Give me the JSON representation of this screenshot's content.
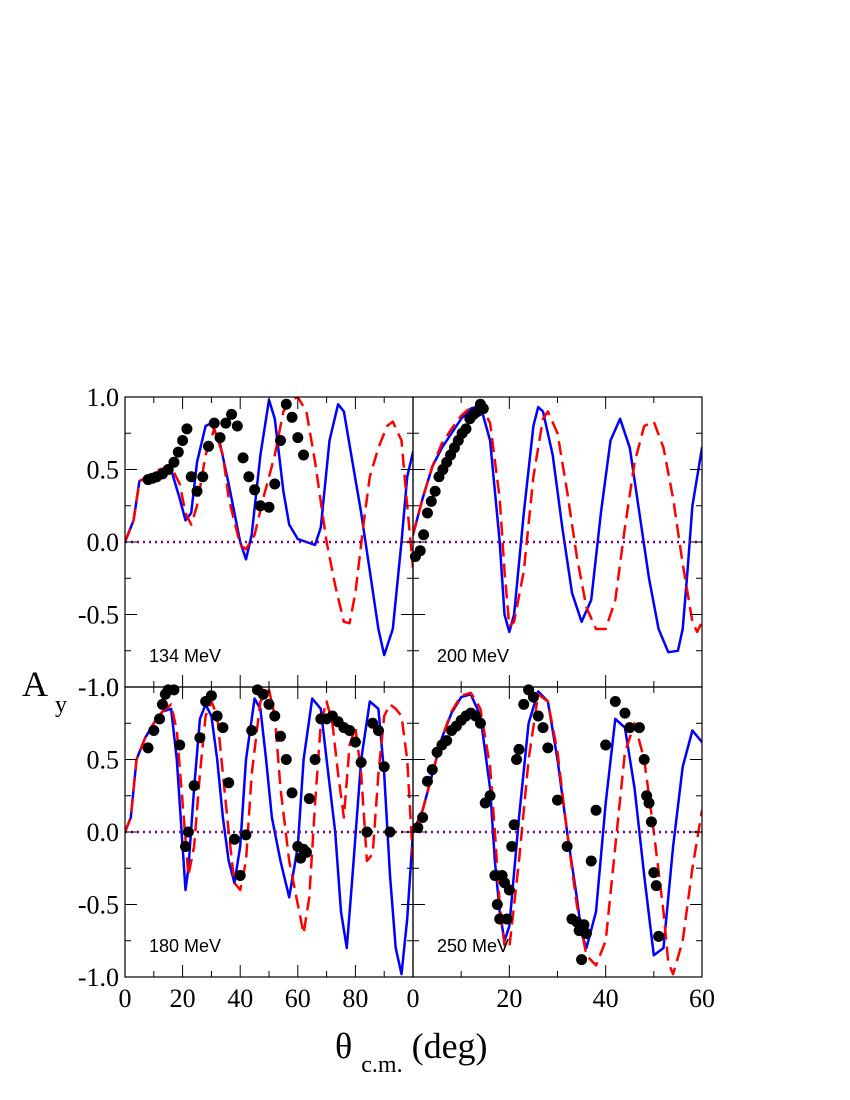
{
  "figure": {
    "ylabel_main": "A",
    "ylabel_sub": "y",
    "xlabel_main": "θ",
    "xlabel_sub": "c.m.",
    "xlabel_unit": "(deg)"
  },
  "chart_data": [
    {
      "type": "line",
      "panel": "top-left",
      "label": "134 MeV",
      "xlim": [
        0,
        100
      ],
      "ylim": [
        -1.0,
        1.0
      ],
      "yticks": [
        "-1.0",
        "-0.5",
        "0.0",
        "0.5",
        "1.0"
      ],
      "xticks": [],
      "series": [
        {
          "style": "solid",
          "color": "#0000ff",
          "x": [
            0,
            3,
            5,
            8,
            12,
            16,
            19,
            21,
            23,
            25,
            28,
            30,
            33,
            36,
            40,
            42,
            44,
            47,
            50,
            52,
            55,
            57,
            60,
            63,
            66,
            68,
            71,
            74,
            76,
            79,
            82,
            85,
            88,
            90,
            93,
            96,
            98,
            100
          ],
          "y": [
            0,
            0.15,
            0.42,
            0.45,
            0.48,
            0.5,
            0.3,
            0.15,
            0.2,
            0.55,
            0.8,
            0.82,
            0.68,
            0.4,
            0.0,
            -0.12,
            0.05,
            0.6,
            0.98,
            0.85,
            0.35,
            0.12,
            0.02,
            0.0,
            -0.02,
            0.1,
            0.7,
            0.95,
            0.9,
            0.55,
            0.2,
            -0.2,
            -0.6,
            -0.78,
            -0.6,
            0.0,
            0.45,
            0.62
          ]
        },
        {
          "style": "dashed",
          "color": "#ff0000",
          "x": [
            0,
            3,
            5,
            8,
            12,
            16,
            19,
            21,
            23,
            25,
            28,
            31,
            34,
            36,
            40,
            42,
            45,
            48,
            52,
            55,
            58,
            60,
            63,
            66,
            70,
            73,
            76,
            78,
            80,
            83,
            85,
            88,
            91,
            93,
            96,
            98,
            100
          ],
          "y": [
            0,
            0.15,
            0.42,
            0.45,
            0.5,
            0.52,
            0.4,
            0.2,
            0.12,
            0.25,
            0.6,
            0.78,
            0.6,
            0.3,
            -0.02,
            -0.05,
            0.05,
            0.3,
            0.6,
            0.9,
            0.98,
            1.0,
            0.9,
            0.55,
            0.0,
            -0.3,
            -0.55,
            -0.56,
            -0.35,
            0.15,
            0.45,
            0.65,
            0.8,
            0.83,
            0.7,
            0.25,
            -0.18
          ]
        },
        {
          "style": "dotted",
          "color": "#800080",
          "x": [
            0,
            100
          ],
          "y": [
            0,
            0
          ]
        },
        {
          "style": "points",
          "color": "#000000",
          "x": [
            8,
            9.5,
            11,
            13,
            15,
            17,
            18.5,
            20,
            21.5,
            23,
            25,
            27,
            29,
            31,
            33,
            35,
            37,
            39,
            41,
            43,
            45,
            47,
            50,
            52,
            54,
            56,
            58,
            60,
            62
          ],
          "y": [
            0.43,
            0.44,
            0.45,
            0.47,
            0.5,
            0.55,
            0.62,
            0.7,
            0.78,
            0.45,
            0.35,
            0.45,
            0.66,
            0.82,
            0.72,
            0.82,
            0.88,
            0.8,
            0.58,
            0.45,
            0.36,
            0.25,
            0.24,
            0.4,
            0.7,
            0.95,
            0.86,
            0.72,
            0.6
          ]
        }
      ]
    },
    {
      "type": "line",
      "panel": "top-right",
      "label": "200 MeV",
      "xlim": [
        0,
        60
      ],
      "ylim": [
        -1.0,
        1.0
      ],
      "yticks": [],
      "xticks": [],
      "series": [
        {
          "style": "solid",
          "color": "#0000ff",
          "x": [
            0,
            2,
            4,
            6,
            8,
            10,
            12,
            14,
            16,
            18,
            19,
            20,
            21,
            23,
            25,
            26,
            27,
            29,
            31,
            33,
            35,
            37,
            39,
            41,
            43,
            45,
            47,
            49,
            51,
            53,
            55,
            56,
            57,
            58,
            60
          ],
          "y": [
            0.05,
            0.3,
            0.52,
            0.65,
            0.75,
            0.85,
            0.92,
            0.94,
            0.7,
            0.0,
            -0.5,
            -0.62,
            -0.5,
            0.2,
            0.8,
            0.93,
            0.9,
            0.6,
            0.1,
            -0.35,
            -0.55,
            -0.4,
            0.2,
            0.7,
            0.85,
            0.65,
            0.2,
            -0.25,
            -0.6,
            -0.76,
            -0.75,
            -0.6,
            -0.2,
            0.25,
            0.65
          ]
        },
        {
          "style": "dashed",
          "color": "#ff0000",
          "x": [
            0,
            2,
            4,
            6,
            8,
            10,
            12,
            14,
            16,
            18,
            19,
            20,
            21,
            23,
            25,
            27,
            28,
            30,
            32,
            34,
            36,
            38,
            40,
            42,
            44,
            46,
            48,
            50,
            52,
            54,
            56,
            58,
            59,
            60
          ],
          "y": [
            0.05,
            0.3,
            0.52,
            0.68,
            0.78,
            0.87,
            0.93,
            0.95,
            0.82,
            0.3,
            -0.2,
            -0.58,
            -0.55,
            -0.2,
            0.45,
            0.85,
            0.9,
            0.75,
            0.35,
            -0.1,
            -0.45,
            -0.6,
            -0.6,
            -0.4,
            0.1,
            0.55,
            0.8,
            0.83,
            0.65,
            0.3,
            -0.15,
            -0.55,
            -0.62,
            -0.55
          ]
        },
        {
          "style": "dotted",
          "color": "#800080",
          "x": [
            0,
            60
          ],
          "y": [
            0,
            0
          ]
        },
        {
          "style": "points",
          "color": "#000000",
          "x": [
            0.5,
            1.5,
            2.2,
            3,
            3.8,
            4.6,
            5.4,
            6.2,
            7,
            7.8,
            8.6,
            9.4,
            10.2,
            11,
            11.8,
            12.6,
            13.4,
            14,
            14.6
          ],
          "y": [
            -0.1,
            -0.06,
            0.05,
            0.2,
            0.28,
            0.35,
            0.45,
            0.5,
            0.55,
            0.6,
            0.65,
            0.7,
            0.75,
            0.78,
            0.85,
            0.88,
            0.9,
            0.95,
            0.92
          ]
        }
      ]
    },
    {
      "type": "line",
      "panel": "bottom-left",
      "label": "180 MeV",
      "xlim": [
        0,
        100
      ],
      "ylim": [
        -1.0,
        1.0
      ],
      "yticks": [
        "-1.0",
        "-0.5",
        "0.0",
        "0.5",
        "1.0"
      ],
      "xticks": [
        "0",
        "20",
        "40",
        "60",
        "80"
      ],
      "series": [
        {
          "style": "solid",
          "color": "#0000ff",
          "x": [
            0,
            2,
            4,
            7,
            10,
            13,
            16,
            18,
            20,
            21,
            22,
            24,
            26,
            28,
            30,
            32,
            34,
            36,
            38,
            40,
            42,
            45,
            47,
            49,
            51,
            54,
            57,
            60,
            62,
            65,
            68,
            70,
            73,
            75,
            77,
            79,
            82,
            85,
            88,
            90,
            92,
            94,
            96,
            98,
            100
          ],
          "y": [
            0,
            0.1,
            0.5,
            0.65,
            0.75,
            0.83,
            0.85,
            0.5,
            -0.1,
            -0.4,
            -0.25,
            0.3,
            0.78,
            0.88,
            0.8,
            0.5,
            0.1,
            -0.2,
            -0.35,
            -0.1,
            0.5,
            0.92,
            0.85,
            0.5,
            0.1,
            -0.2,
            -0.45,
            -0.1,
            0.5,
            0.92,
            0.85,
            0.5,
            0.0,
            -0.55,
            -0.8,
            -0.3,
            0.5,
            0.9,
            0.85,
            0.4,
            -0.3,
            -0.8,
            -0.98,
            -0.6,
            0.0
          ]
        },
        {
          "style": "dashed",
          "color": "#ff0000",
          "x": [
            0,
            2,
            4,
            7,
            10,
            13,
            16,
            18,
            20,
            22,
            24,
            26,
            28,
            30,
            32,
            34,
            36,
            38,
            40,
            42,
            44,
            47,
            50,
            52,
            54,
            57,
            60,
            62,
            64,
            66,
            68,
            70,
            72,
            74,
            76,
            78,
            80,
            82,
            84,
            86,
            88,
            90,
            92,
            94,
            96,
            98,
            100
          ],
          "y": [
            0,
            0.1,
            0.5,
            0.65,
            0.75,
            0.83,
            0.88,
            0.7,
            0.2,
            -0.3,
            -0.1,
            0.4,
            0.8,
            0.9,
            0.8,
            0.4,
            0.0,
            -0.35,
            -0.4,
            -0.2,
            0.4,
            0.9,
            0.98,
            0.8,
            0.3,
            -0.2,
            -0.5,
            -0.7,
            -0.45,
            0.2,
            0.75,
            0.9,
            0.75,
            0.4,
            0.1,
            0.6,
            0.72,
            0.4,
            -0.2,
            -0.15,
            0.4,
            0.8,
            0.88,
            0.85,
            0.8,
            0.5,
            -0.2
          ]
        },
        {
          "style": "dotted",
          "color": "#800080",
          "x": [
            0,
            100
          ],
          "y": [
            0,
            0
          ]
        },
        {
          "style": "points",
          "color": "#000000",
          "x": [
            8,
            10,
            12,
            13,
            14,
            15,
            17,
            19,
            21,
            22,
            24,
            26,
            28,
            30,
            32,
            34,
            36,
            38,
            40,
            42,
            44,
            46,
            48,
            50,
            52,
            54,
            56,
            58,
            60,
            61,
            62,
            63,
            64,
            66,
            68,
            70,
            72,
            74,
            76,
            78,
            80,
            82,
            84,
            86,
            88,
            90,
            92
          ],
          "y": [
            0.58,
            0.7,
            0.78,
            0.88,
            0.95,
            0.98,
            0.98,
            0.6,
            -0.1,
            0.0,
            0.32,
            0.65,
            0.9,
            0.94,
            0.8,
            0.72,
            0.34,
            -0.05,
            -0.3,
            -0.02,
            0.7,
            0.98,
            0.95,
            0.88,
            0.8,
            0.66,
            0.5,
            0.27,
            -0.1,
            -0.18,
            -0.12,
            -0.14,
            0.23,
            0.5,
            0.78,
            0.78,
            0.8,
            0.76,
            0.72,
            0.7,
            0.62,
            0.48,
            0.0,
            0.75,
            0.7,
            0.45,
            0.0
          ]
        }
      ]
    },
    {
      "type": "line",
      "panel": "bottom-right",
      "label": "250 MeV",
      "xlim": [
        0,
        60
      ],
      "ylim": [
        -1.0,
        1.0
      ],
      "yticks": [],
      "xticks": [
        "0",
        "20",
        "40",
        "60"
      ],
      "series": [
        {
          "style": "solid",
          "color": "#0000ff",
          "x": [
            0,
            2,
            4,
            6,
            8,
            10,
            12,
            14,
            16,
            17,
            18,
            19,
            20,
            22,
            24,
            26,
            28,
            30,
            32,
            34,
            35,
            36,
            38,
            40,
            42,
            44,
            46,
            48,
            50,
            52,
            54,
            56,
            58,
            60
          ],
          "y": [
            0,
            0.15,
            0.4,
            0.65,
            0.82,
            0.93,
            0.95,
            0.8,
            0.3,
            -0.2,
            -0.55,
            -0.75,
            -0.65,
            0.1,
            0.75,
            0.97,
            0.9,
            0.5,
            0.0,
            -0.45,
            -0.7,
            -0.8,
            -0.55,
            0.2,
            0.78,
            0.72,
            0.3,
            -0.3,
            -0.85,
            -0.8,
            -0.1,
            0.45,
            0.7,
            0.62
          ]
        },
        {
          "style": "dashed",
          "color": "#ff0000",
          "x": [
            0,
            2,
            4,
            6,
            8,
            10,
            12,
            14,
            16,
            17,
            18,
            19,
            20,
            22,
            24,
            26,
            28,
            30,
            32,
            34,
            36,
            38,
            40,
            42,
            44,
            46,
            48,
            50,
            52,
            53,
            54,
            56,
            58,
            60
          ],
          "y": [
            0,
            0.15,
            0.4,
            0.65,
            0.83,
            0.94,
            0.96,
            0.85,
            0.45,
            0.0,
            -0.5,
            -0.78,
            -0.8,
            -0.2,
            0.5,
            0.95,
            0.9,
            0.55,
            0.0,
            -0.5,
            -0.85,
            -0.92,
            -0.75,
            -0.1,
            0.55,
            0.75,
            0.5,
            0.0,
            -0.55,
            -0.9,
            -0.98,
            -0.75,
            -0.25,
            0.15
          ]
        },
        {
          "style": "dotted",
          "color": "#800080",
          "x": [
            0,
            60
          ],
          "y": [
            0,
            0
          ]
        },
        {
          "style": "points",
          "color": "#000000",
          "x": [
            1,
            2,
            3,
            4,
            5,
            6,
            7,
            8,
            9,
            10,
            11,
            12,
            13,
            14,
            15,
            16,
            17,
            17.5,
            18,
            18.5,
            19,
            19.5,
            20,
            20.5,
            21,
            21.5,
            22,
            23,
            24,
            25,
            26,
            27,
            28,
            30,
            32,
            33,
            34,
            34.5,
            35,
            35.5,
            36,
            37,
            38,
            40,
            42,
            44,
            45,
            47,
            48,
            48.5,
            49,
            49.5,
            50,
            50.5,
            51
          ],
          "y": [
            0.03,
            0.1,
            0.35,
            0.43,
            0.55,
            0.6,
            0.63,
            0.7,
            0.73,
            0.77,
            0.8,
            0.82,
            0.8,
            0.75,
            0.2,
            0.25,
            -0.3,
            -0.5,
            -0.6,
            -0.3,
            -0.35,
            -0.6,
            -0.4,
            -0.1,
            0.05,
            0.5,
            0.57,
            0.88,
            0.98,
            0.93,
            0.8,
            0.72,
            0.58,
            0.22,
            -0.1,
            -0.6,
            -0.62,
            -0.68,
            -0.88,
            -0.64,
            -0.7,
            -0.2,
            0.15,
            0.6,
            0.9,
            0.82,
            0.72,
            0.72,
            0.5,
            0.25,
            0.2,
            0.07,
            -0.28,
            -0.37,
            -0.72
          ]
        }
      ]
    }
  ]
}
